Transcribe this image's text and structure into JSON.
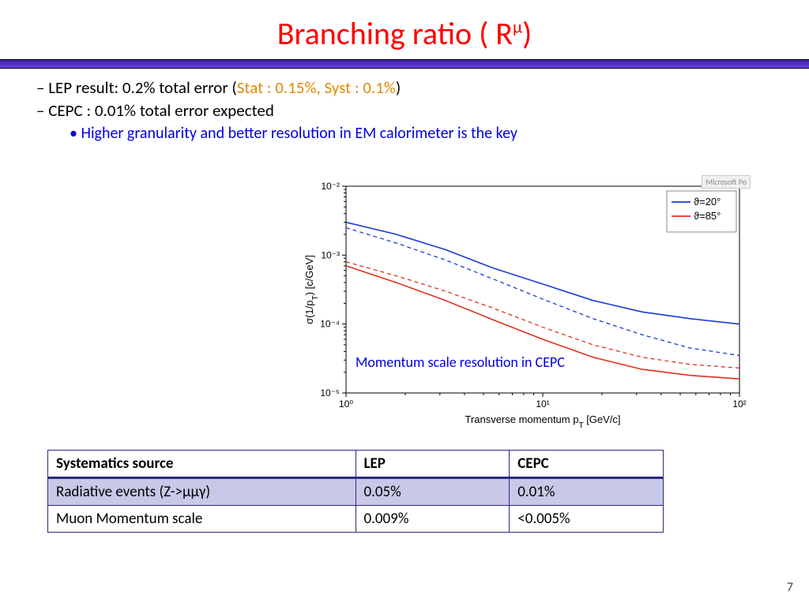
{
  "title_pre": "Branching ratio ( R",
  "title_sup": "μ",
  "title_post": ")",
  "bullets": {
    "lep_pre": "LEP result:  0.2% total error (",
    "lep_orange": "Stat : 0.15%, Syst : 0.1%",
    "lep_post": ")",
    "cepc": "CEPC :  0.01% total error expected",
    "sub_blue": "Higher granularity and better resolution in EM calorimeter is the key"
  },
  "chart": {
    "type": "line",
    "xlabel_pre": "Transverse momentum p",
    "xlabel_sub": "T",
    "xlabel_post": " [GeV/c]",
    "ylabel_pre": "σ(1/p",
    "ylabel_sub": "T",
    "ylabel_post": ") [c/GeV]",
    "xscale": "log",
    "yscale": "log",
    "xlim": [
      1,
      100
    ],
    "ylim": [
      1e-05,
      0.01
    ],
    "xticks": [
      1,
      10,
      100
    ],
    "xtick_labels": [
      "10⁰",
      "10¹",
      "10²"
    ],
    "yticks": [
      1e-05,
      0.0001,
      0.001,
      0.01
    ],
    "ytick_labels": [
      "10⁻⁵",
      "10⁻⁴",
      "10⁻³",
      "10⁻²"
    ],
    "background_color": "#ffffff",
    "axis_color": "#000000",
    "line_width_solid": 1.6,
    "line_width_dash": 1.3,
    "dash_pattern": "5,4",
    "colors": {
      "theta20": "#1a3cd6",
      "theta85": "#e03020"
    },
    "series": [
      {
        "name": "theta20-solid",
        "color_key": "theta20",
        "dash": false,
        "x": [
          1,
          1.8,
          3.2,
          5.6,
          10,
          18,
          32,
          56,
          100
        ],
        "y": [
          0.003,
          0.002,
          0.0012,
          0.00065,
          0.00038,
          0.00022,
          0.00015,
          0.00012,
          0.0001
        ]
      },
      {
        "name": "theta20-dash",
        "color_key": "theta20",
        "dash": true,
        "x": [
          1,
          1.8,
          3.2,
          5.6,
          10,
          18,
          32,
          56,
          100
        ],
        "y": [
          0.0025,
          0.0015,
          0.00085,
          0.00045,
          0.00023,
          0.00012,
          7e-05,
          4.5e-05,
          3.5e-05
        ]
      },
      {
        "name": "theta85-dash",
        "color_key": "theta85",
        "dash": true,
        "x": [
          1,
          1.8,
          3.2,
          5.6,
          10,
          18,
          32,
          56,
          100
        ],
        "y": [
          0.0008,
          0.0005,
          0.0003,
          0.00017,
          9e-05,
          5e-05,
          3.3e-05,
          2.6e-05,
          2.3e-05
        ]
      },
      {
        "name": "theta85-solid",
        "color_key": "theta85",
        "dash": false,
        "x": [
          1,
          1.8,
          3.2,
          5.6,
          10,
          18,
          32,
          56,
          100
        ],
        "y": [
          0.0007,
          0.0004,
          0.00022,
          0.000115,
          6e-05,
          3.3e-05,
          2.2e-05,
          1.8e-05,
          1.6e-05
        ]
      }
    ],
    "legend": {
      "items": [
        {
          "color_key": "theta20",
          "label": "ϑ=20°"
        },
        {
          "color_key": "theta85",
          "label": "ϑ=85°"
        }
      ]
    },
    "note": "Momentum scale resolution in CEPC",
    "badge": "Microsoft Po"
  },
  "table": {
    "columns": [
      "Systematics source",
      "LEP",
      "CEPC"
    ],
    "col_widths": [
      "50%",
      "25%",
      "25%"
    ],
    "rows": [
      {
        "cells": [
          "Radiative events (Z->μμγ)",
          "0.05%",
          "0.01%"
        ],
        "shaded": true
      },
      {
        "cells": [
          "Muon Momentum scale",
          "0.009%",
          "<0.005%"
        ],
        "shaded": false
      }
    ]
  },
  "page_number": "7"
}
